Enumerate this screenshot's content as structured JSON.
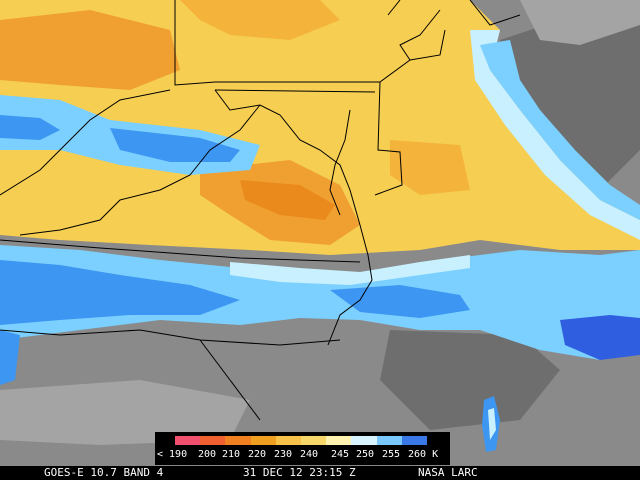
{
  "footer": {
    "satellite": "GOES-E 10.7 BAND 4",
    "datetime": "31 DEC 12 23:15 Z",
    "credit": "NASA LARC"
  },
  "legend": {
    "unit": "K",
    "ticks": [
      "< 190",
      "200",
      "210",
      "220",
      "230",
      "240",
      "245",
      "250",
      "255",
      "260 K"
    ],
    "colors": [
      "#f0506e",
      "#f06030",
      "#f08020",
      "#f0a020",
      "#f7c24a",
      "#f7d66a",
      "#fdf2b0",
      "#d8f4ff",
      "#79c8ff",
      "#3a78e8"
    ]
  },
  "palette": {
    "gray_dark": "#6e6e6e",
    "gray_mid": "#8a8a8a",
    "gray_light": "#a4a4a4",
    "blue_light": "#7cd0ff",
    "blue_mid": "#3c96f2",
    "blue_deep": "#2f5fe0",
    "cyan_pale": "#c8f0ff",
    "yellow": "#f6ce52",
    "yellow_pale": "#fae090",
    "orange_light": "#f4b43c",
    "orange": "#f0a030",
    "orange_deep": "#ea8a1c",
    "border": "#000000"
  }
}
